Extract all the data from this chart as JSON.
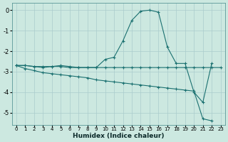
{
  "xlabel": "Humidex (Indice chaleur)",
  "background_color": "#cce8e0",
  "grid_color": "#aacccc",
  "line_color": "#1a7070",
  "xlim": [
    -0.5,
    23.5
  ],
  "ylim": [
    -5.6,
    0.35
  ],
  "yticks": [
    0,
    -1,
    -2,
    -3,
    -4,
    -5
  ],
  "xticks": [
    0,
    1,
    2,
    3,
    4,
    5,
    6,
    7,
    8,
    9,
    10,
    11,
    12,
    13,
    14,
    15,
    16,
    17,
    18,
    19,
    20,
    21,
    22,
    23
  ],
  "line1_x": [
    0,
    1,
    2,
    3,
    4,
    5,
    6,
    7,
    8,
    9,
    10,
    11,
    12,
    13,
    14,
    15,
    16,
    17,
    18,
    19,
    20,
    21,
    22
  ],
  "line1_y": [
    -2.7,
    -2.7,
    -2.75,
    -2.8,
    -2.75,
    -2.7,
    -2.75,
    -2.8,
    -2.8,
    -2.8,
    -2.4,
    -2.3,
    -1.5,
    -0.5,
    -0.05,
    0.0,
    -0.1,
    -1.8,
    -2.6,
    -2.6,
    -4.0,
    -4.5,
    -2.6
  ],
  "line2_x": [
    0,
    1,
    2,
    3,
    4,
    5,
    6,
    7,
    8,
    9,
    10,
    11,
    12,
    13,
    14,
    15,
    16,
    17,
    18,
    19,
    20,
    21,
    22,
    23
  ],
  "line2_y": [
    -2.7,
    -2.7,
    -2.75,
    -2.75,
    -2.75,
    -2.75,
    -2.8,
    -2.8,
    -2.8,
    -2.8,
    -2.8,
    -2.8,
    -2.8,
    -2.8,
    -2.8,
    -2.8,
    -2.8,
    -2.8,
    -2.8,
    -2.8,
    -2.8,
    -2.8,
    -2.8,
    -2.8
  ],
  "line3_x": [
    0,
    1,
    2,
    3,
    4,
    5,
    6,
    7,
    8,
    9,
    10,
    11,
    12,
    13,
    14,
    15,
    16,
    17,
    18,
    19,
    20,
    21,
    22,
    23
  ],
  "line3_y": [
    -2.7,
    -2.85,
    -2.95,
    -3.05,
    -3.1,
    -3.15,
    -3.2,
    -3.25,
    -3.3,
    -3.4,
    -3.45,
    -3.5,
    -3.55,
    -3.6,
    -3.65,
    -3.7,
    -3.75,
    -3.8,
    -3.85,
    -3.9,
    -3.95,
    -5.3,
    -5.4,
    null
  ]
}
